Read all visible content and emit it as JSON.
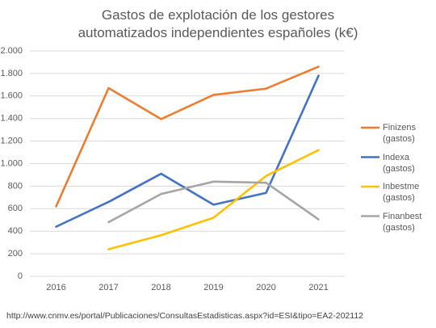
{
  "chart_data": {
    "type": "line",
    "title": "Gastos de explotación de los gestores automatizados independientes españoles (k€)",
    "categories": [
      "2016",
      "2017",
      "2018",
      "2019",
      "2020",
      "2021"
    ],
    "series": [
      {
        "name": "Finizens (gastos)",
        "color": "#ED7D31",
        "values": [
          620,
          1670,
          1395,
          1610,
          1665,
          1860
        ]
      },
      {
        "name": "Indexa (gastos)",
        "color": "#4472C4",
        "values": [
          440,
          660,
          910,
          635,
          740,
          1780
        ]
      },
      {
        "name": "Inbestme (gastos)",
        "color": "#FFC000",
        "values": [
          null,
          240,
          365,
          520,
          890,
          1120
        ]
      },
      {
        "name": "Finanbest (gastos)",
        "color": "#A5A5A5",
        "values": [
          null,
          480,
          730,
          840,
          830,
          505
        ]
      }
    ],
    "ylim": [
      0,
      2000
    ],
    "yticks": [
      0,
      200,
      400,
      600,
      800,
      {
        "value": 1000,
        "label": "1.000"
      },
      {
        "value": 1200,
        "label": "1.200"
      },
      {
        "value": 1400,
        "label": "1.400"
      },
      {
        "value": 1600,
        "label": "1.600"
      },
      {
        "value": 1800,
        "label": "1.800"
      },
      {
        "value": 2000,
        "label": "2.000"
      }
    ],
    "grid": true,
    "legend": "right",
    "source": "http://www.cnmv.es/portal/Publicaciones/ConsultasEstadisticas.aspx?id=ESI&tipo=EA2-202112"
  }
}
